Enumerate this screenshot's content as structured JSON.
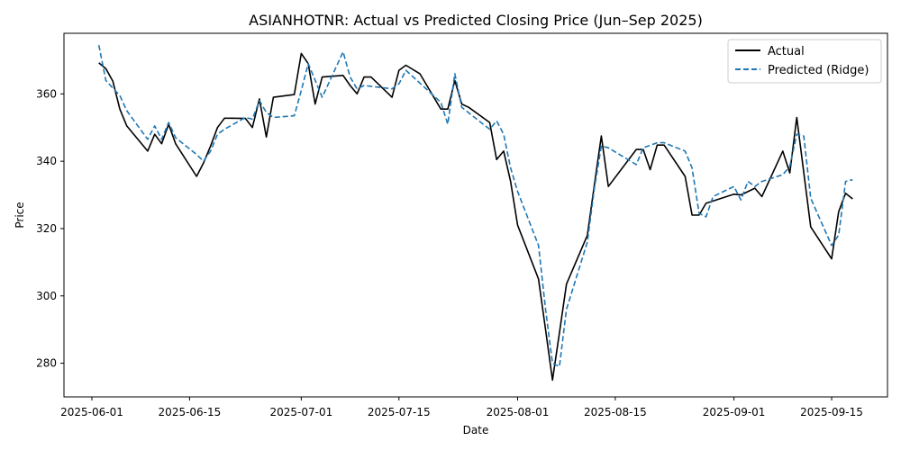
{
  "chart_data": {
    "type": "line",
    "title": "ASIANHOTNR: Actual vs Predicted Closing Price (Jun–Sep 2025)",
    "xlabel": "Date",
    "ylabel": "Price",
    "xlim": [
      "2025-05-28",
      "2025-09-23"
    ],
    "ylim": [
      270,
      378
    ],
    "grid": false,
    "legend_position": "top-right",
    "x_ticks": [
      "2025-06-01",
      "2025-06-15",
      "2025-07-01",
      "2025-07-15",
      "2025-08-01",
      "2025-08-15",
      "2025-09-01",
      "2025-09-15"
    ],
    "y_ticks": [
      280,
      300,
      320,
      340,
      360
    ],
    "series": [
      {
        "name": "Actual",
        "color": "#000000",
        "style": "solid",
        "points": [
          [
            "2025-06-02",
            369.2
          ],
          [
            "2025-06-03",
            367.5
          ],
          [
            "2025-06-04",
            363.8
          ],
          [
            "2025-06-05",
            355.5
          ],
          [
            "2025-06-06",
            350.5
          ],
          [
            "2025-06-09",
            343.0
          ],
          [
            "2025-06-10",
            348.0
          ],
          [
            "2025-06-11",
            345.2
          ],
          [
            "2025-06-12",
            351.0
          ],
          [
            "2025-06-13",
            345.2
          ],
          [
            "2025-06-16",
            335.5
          ],
          [
            "2025-06-17",
            339.5
          ],
          [
            "2025-06-18",
            344.5
          ],
          [
            "2025-06-19",
            350.0
          ],
          [
            "2025-06-20",
            352.8
          ],
          [
            "2025-06-23",
            352.7
          ],
          [
            "2025-06-24",
            350.0
          ],
          [
            "2025-06-25",
            358.5
          ],
          [
            "2025-06-26",
            347.2
          ],
          [
            "2025-06-27",
            359.0
          ],
          [
            "2025-06-30",
            359.8
          ],
          [
            "2025-07-01",
            372.0
          ],
          [
            "2025-07-02",
            369.0
          ],
          [
            "2025-07-03",
            357.0
          ],
          [
            "2025-07-04",
            365.0
          ],
          [
            "2025-07-07",
            365.5
          ],
          [
            "2025-07-08",
            362.5
          ],
          [
            "2025-07-09",
            360.0
          ],
          [
            "2025-07-10",
            365.0
          ],
          [
            "2025-07-11",
            365.0
          ],
          [
            "2025-07-14",
            359.0
          ],
          [
            "2025-07-15",
            367.0
          ],
          [
            "2025-07-16",
            368.5
          ],
          [
            "2025-07-18",
            366.0
          ],
          [
            "2025-07-21",
            355.5
          ],
          [
            "2025-07-22",
            355.5
          ],
          [
            "2025-07-23",
            364.0
          ],
          [
            "2025-07-24",
            357.0
          ],
          [
            "2025-07-25",
            356.0
          ],
          [
            "2025-07-28",
            351.5
          ],
          [
            "2025-07-29",
            340.5
          ],
          [
            "2025-07-30",
            343.0
          ],
          [
            "2025-07-31",
            334.0
          ],
          [
            "2025-08-01",
            321.0
          ],
          [
            "2025-08-04",
            305.0
          ],
          [
            "2025-08-05",
            290.0
          ],
          [
            "2025-08-06",
            275.0
          ],
          [
            "2025-08-07",
            289.0
          ],
          [
            "2025-08-08",
            303.5
          ],
          [
            "2025-08-11",
            318.0
          ],
          [
            "2025-08-12",
            333.0
          ],
          [
            "2025-08-13",
            347.5
          ],
          [
            "2025-08-14",
            332.5
          ],
          [
            "2025-08-18",
            343.5
          ],
          [
            "2025-08-19",
            343.5
          ],
          [
            "2025-08-20",
            337.5
          ],
          [
            "2025-08-21",
            344.8
          ],
          [
            "2025-08-22",
            344.8
          ],
          [
            "2025-08-25",
            335.5
          ],
          [
            "2025-08-26",
            324.0
          ],
          [
            "2025-08-27",
            324.0
          ],
          [
            "2025-08-28",
            327.5
          ],
          [
            "2025-09-01",
            330.2
          ],
          [
            "2025-09-02",
            330.0
          ],
          [
            "2025-09-04",
            332.0
          ],
          [
            "2025-09-05",
            329.5
          ],
          [
            "2025-09-08",
            343.0
          ],
          [
            "2025-09-09",
            336.5
          ],
          [
            "2025-09-10",
            353.0
          ],
          [
            "2025-09-12",
            320.5
          ],
          [
            "2025-09-15",
            311.0
          ],
          [
            "2025-09-16",
            325.0
          ],
          [
            "2025-09-17",
            330.5
          ],
          [
            "2025-09-18",
            328.8
          ]
        ]
      },
      {
        "name": "Predicted (Ridge)",
        "color": "#1f77b4",
        "style": "dashed",
        "points": [
          [
            "2025-06-02",
            374.5
          ],
          [
            "2025-06-03",
            364.0
          ],
          [
            "2025-06-05",
            359.5
          ],
          [
            "2025-06-06",
            355.0
          ],
          [
            "2025-06-09",
            346.5
          ],
          [
            "2025-06-10",
            350.5
          ],
          [
            "2025-06-11",
            346.5
          ],
          [
            "2025-06-12",
            351.5
          ],
          [
            "2025-06-13",
            347.0
          ],
          [
            "2025-06-16",
            342.0
          ],
          [
            "2025-06-17",
            340.0
          ],
          [
            "2025-06-18",
            343.0
          ],
          [
            "2025-06-19",
            348.0
          ],
          [
            "2025-06-20",
            349.5
          ],
          [
            "2025-06-23",
            353.0
          ],
          [
            "2025-06-24",
            352.5
          ],
          [
            "2025-06-25",
            358.0
          ],
          [
            "2025-06-26",
            354.5
          ],
          [
            "2025-06-27",
            353.0
          ],
          [
            "2025-06-30",
            353.5
          ],
          [
            "2025-07-01",
            361.0
          ],
          [
            "2025-07-02",
            369.0
          ],
          [
            "2025-07-04",
            359.0
          ],
          [
            "2025-07-07",
            372.5
          ],
          [
            "2025-07-08",
            365.0
          ],
          [
            "2025-07-09",
            361.5
          ],
          [
            "2025-07-10",
            362.5
          ],
          [
            "2025-07-14",
            361.5
          ],
          [
            "2025-07-15",
            363.0
          ],
          [
            "2025-07-16",
            367.0
          ],
          [
            "2025-07-21",
            357.5
          ],
          [
            "2025-07-22",
            351.0
          ],
          [
            "2025-07-23",
            366.0
          ],
          [
            "2025-07-24",
            356.0
          ],
          [
            "2025-07-28",
            349.5
          ],
          [
            "2025-07-29",
            352.0
          ],
          [
            "2025-07-30",
            348.0
          ],
          [
            "2025-07-31",
            338.0
          ],
          [
            "2025-08-01",
            331.0
          ],
          [
            "2025-08-04",
            315.0
          ],
          [
            "2025-08-05",
            296.0
          ],
          [
            "2025-08-06",
            280.0
          ],
          [
            "2025-08-07",
            279.0
          ],
          [
            "2025-08-08",
            296.0
          ],
          [
            "2025-08-11",
            316.0
          ],
          [
            "2025-08-12",
            332.0
          ],
          [
            "2025-08-13",
            344.5
          ],
          [
            "2025-08-14",
            344.0
          ],
          [
            "2025-08-18",
            339.0
          ],
          [
            "2025-08-19",
            344.0
          ],
          [
            "2025-08-21",
            345.5
          ],
          [
            "2025-08-22",
            345.5
          ],
          [
            "2025-08-25",
            343.0
          ],
          [
            "2025-08-26",
            338.0
          ],
          [
            "2025-08-27",
            324.5
          ],
          [
            "2025-08-28",
            323.5
          ],
          [
            "2025-08-29",
            329.5
          ],
          [
            "2025-09-01",
            332.5
          ],
          [
            "2025-09-02",
            328.5
          ],
          [
            "2025-09-03",
            334.0
          ],
          [
            "2025-09-04",
            332.5
          ],
          [
            "2025-09-05",
            334.0
          ],
          [
            "2025-09-08",
            336.0
          ],
          [
            "2025-09-09",
            338.5
          ],
          [
            "2025-09-10",
            348.0
          ],
          [
            "2025-09-11",
            347.5
          ],
          [
            "2025-09-12",
            329.0
          ],
          [
            "2025-09-15",
            315.0
          ],
          [
            "2025-09-16",
            318.0
          ],
          [
            "2025-09-17",
            334.0
          ],
          [
            "2025-09-18",
            334.5
          ]
        ]
      }
    ]
  }
}
